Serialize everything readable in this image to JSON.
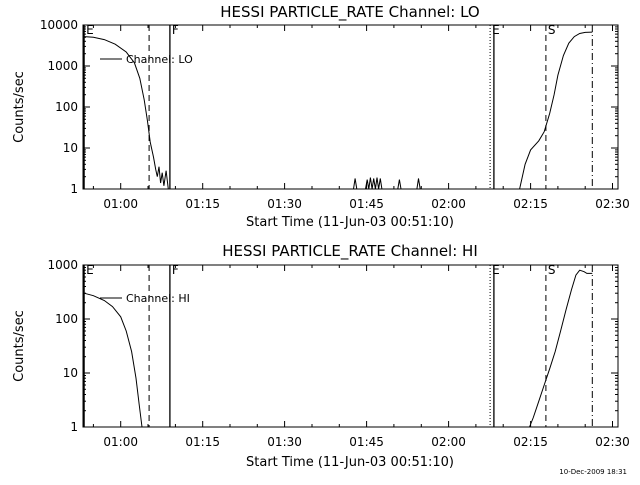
{
  "stamp": "10-Dec-2009 18:31",
  "chart_data": [
    {
      "type": "line",
      "title": "HESSI PARTICLE_RATE Channel: LO",
      "xlabel": "Start Time (11-Jun-03 00:51:10)",
      "ylabel": "Counts/sec",
      "yscale": "log",
      "ylim": [
        1,
        10000
      ],
      "xlim_min": [
        53.1,
        151.0
      ],
      "x_ticks": [
        {
          "t": 60,
          "label": "01:00"
        },
        {
          "t": 75,
          "label": "01:15"
        },
        {
          "t": 90,
          "label": "01:30"
        },
        {
          "t": 105,
          "label": "01:45"
        },
        {
          "t": 120,
          "label": "02:00"
        },
        {
          "t": 135,
          "label": "02:15"
        },
        {
          "t": 150,
          "label": "02:30"
        }
      ],
      "y_ticks": [
        {
          "v": 1,
          "label": "1"
        },
        {
          "v": 10,
          "label": "10"
        },
        {
          "v": 100,
          "label": "100"
        },
        {
          "v": 1000,
          "label": "1000"
        },
        {
          "v": 10000,
          "label": "10000"
        }
      ],
      "legend": {
        "label": "Channel: LO",
        "placement": "top-left"
      },
      "markers": [
        {
          "t": 53.3,
          "style": "solid",
          "label": "E"
        },
        {
          "t": 65.2,
          "style": "dashed",
          "label": ""
        },
        {
          "t": 69.0,
          "style": "solid",
          "label": "F"
        },
        {
          "t": 127.6,
          "style": "dotted",
          "label": "E"
        },
        {
          "t": 128.3,
          "style": "solid",
          "label": ""
        },
        {
          "t": 137.8,
          "style": "dashed",
          "label": "S"
        },
        {
          "t": 146.3,
          "style": "dashdot",
          "label": ""
        }
      ],
      "series": [
        {
          "segments": [
            [
              [
                53.3,
                5200
              ],
              [
                55,
                5000
              ],
              [
                57,
                4400
              ],
              [
                59,
                3400
              ],
              [
                61,
                2200
              ],
              [
                62.5,
                1200
              ],
              [
                63.5,
                500
              ],
              [
                64.3,
                150
              ],
              [
                64.9,
                45
              ],
              [
                65.4,
                14
              ],
              [
                66,
                6
              ],
              [
                66.4,
                3
              ],
              [
                66.7,
                2
              ],
              [
                67,
                3.5
              ],
              [
                67.3,
                1.4
              ],
              [
                67.6,
                2.5
              ],
              [
                67.9,
                1.2
              ],
              [
                68.3,
                2.8
              ],
              [
                68.7,
                1.0
              ]
            ],
            [
              [
                102.6,
                1
              ],
              [
                102.9,
                1.8
              ],
              [
                103.2,
                1
              ]
            ],
            [
              [
                104.8,
                1
              ],
              [
                105.1,
                1.7
              ],
              [
                105.4,
                1
              ],
              [
                105.7,
                1.9
              ],
              [
                106.0,
                1
              ],
              [
                106.3,
                1.8
              ],
              [
                106.6,
                1
              ],
              [
                106.9,
                1.9
              ],
              [
                107.2,
                1
              ],
              [
                107.5,
                1.8
              ],
              [
                107.8,
                1
              ]
            ],
            [
              [
                110.7,
                1
              ],
              [
                111.0,
                1.7
              ],
              [
                111.3,
                1
              ]
            ],
            [
              [
                114.2,
                1
              ],
              [
                114.5,
                1.8
              ],
              [
                114.8,
                1
              ]
            ],
            [
              [
                133.0,
                1
              ],
              [
                134.0,
                4
              ],
              [
                135.0,
                9
              ],
              [
                136.5,
                15
              ],
              [
                137.5,
                25
              ],
              [
                138.5,
                70
              ],
              [
                139.3,
                200
              ],
              [
                140,
                600
              ],
              [
                141,
                1800
              ],
              [
                142,
                3600
              ],
              [
                143,
                5200
              ],
              [
                144,
                6200
              ],
              [
                145,
                6600
              ],
              [
                146.3,
                6700
              ]
            ]
          ]
        }
      ]
    },
    {
      "type": "line",
      "title": "HESSI PARTICLE_RATE Channel: HI",
      "xlabel": "Start Time (11-Jun-03 00:51:10)",
      "ylabel": "Counts/sec",
      "yscale": "log",
      "ylim": [
        1,
        1000
      ],
      "xlim_min": [
        53.1,
        151.0
      ],
      "x_ticks": [
        {
          "t": 60,
          "label": "01:00"
        },
        {
          "t": 75,
          "label": "01:15"
        },
        {
          "t": 90,
          "label": "01:30"
        },
        {
          "t": 105,
          "label": "01:45"
        },
        {
          "t": 120,
          "label": "02:00"
        },
        {
          "t": 135,
          "label": "02:15"
        },
        {
          "t": 150,
          "label": "02:30"
        }
      ],
      "y_ticks": [
        {
          "v": 1,
          "label": "1"
        },
        {
          "v": 10,
          "label": "10"
        },
        {
          "v": 100,
          "label": "100"
        },
        {
          "v": 1000,
          "label": "1000"
        }
      ],
      "legend": {
        "label": "Channel: HI",
        "placement": "top-left"
      },
      "markers": [
        {
          "t": 53.3,
          "style": "solid",
          "label": "E"
        },
        {
          "t": 65.2,
          "style": "dashed",
          "label": ""
        },
        {
          "t": 69.0,
          "style": "solid",
          "label": "F"
        },
        {
          "t": 127.6,
          "style": "dotted",
          "label": "E"
        },
        {
          "t": 128.3,
          "style": "solid",
          "label": ""
        },
        {
          "t": 137.8,
          "style": "dashed",
          "label": "S"
        },
        {
          "t": 146.3,
          "style": "dashdot",
          "label": ""
        }
      ],
      "series": [
        {
          "segments": [
            [
              [
                53.3,
                300
              ],
              [
                55,
                270
              ],
              [
                57,
                220
              ],
              [
                58.5,
                170
              ],
              [
                60,
                110
              ],
              [
                61,
                60
              ],
              [
                62,
                25
              ],
              [
                62.8,
                8
              ],
              [
                63.4,
                2.5
              ],
              [
                63.9,
                1
              ]
            ],
            [
              [
                134.8,
                1
              ],
              [
                135.5,
                1.5
              ],
              [
                136.5,
                3
              ],
              [
                137.5,
                6
              ],
              [
                138.5,
                12
              ],
              [
                139.5,
                25
              ],
              [
                140.5,
                60
              ],
              [
                141.5,
                150
              ],
              [
                142.5,
                350
              ],
              [
                143.3,
                650
              ],
              [
                144,
                800
              ],
              [
                144.8,
                750
              ],
              [
                145.3,
                700
              ],
              [
                146.3,
                700
              ]
            ]
          ]
        }
      ]
    }
  ]
}
